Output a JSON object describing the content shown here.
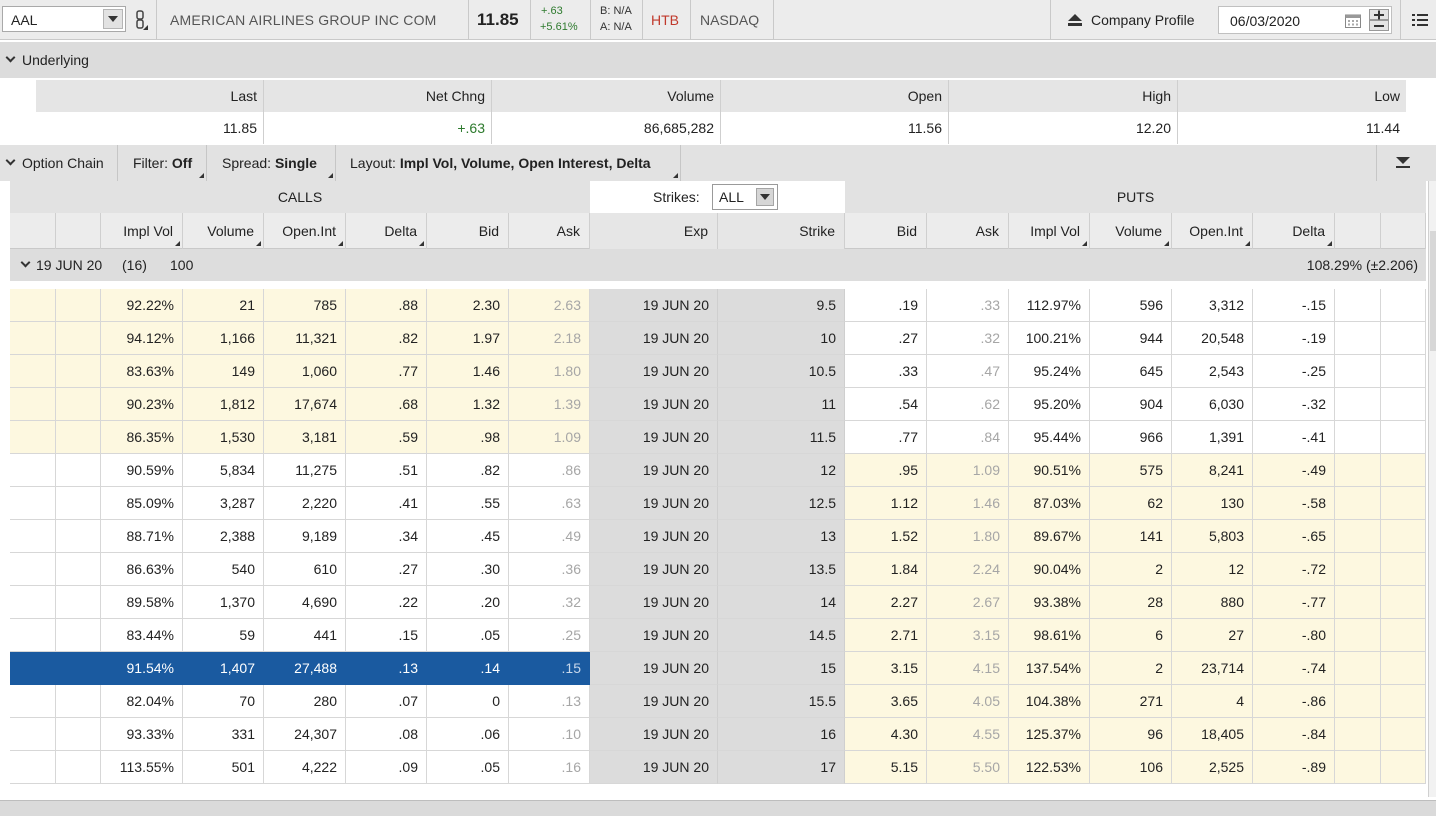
{
  "topbar": {
    "symbol": "AAL",
    "company_name": "AMERICAN AIRLINES GROUP INC COM",
    "last_price": "11.85",
    "change_abs": "+.63",
    "change_pct": "+5.61%",
    "bid": "B: N/A",
    "ask": "A: N/A",
    "htb": "HTB",
    "exchange": "NASDAQ",
    "company_profile": "Company Profile",
    "date": "06/03/2020"
  },
  "underlying": {
    "title": "Underlying",
    "columns": [
      "Last",
      "Net Chng",
      "Volume",
      "Open",
      "High",
      "Low"
    ],
    "values": [
      "11.85",
      "+.63",
      "86,685,282",
      "11.56",
      "12.20",
      "11.44"
    ]
  },
  "option_chain": {
    "title": "Option Chain",
    "filter_label": "Filter:",
    "filter_value": "Off",
    "spread_label": "Spread:",
    "spread_value": "Single",
    "layout_label": "Layout:",
    "layout_value": "Impl Vol, Volume, Open Interest, Delta",
    "calls_label": "CALLS",
    "puts_label": "PUTS",
    "strikes_label": "Strikes:",
    "strikes_value": "ALL",
    "call_columns": [
      "Impl Vol",
      "Volume",
      "Open.Int",
      "Delta",
      "Bid",
      "Ask"
    ],
    "mid_columns": [
      "Exp",
      "Strike"
    ],
    "put_columns": [
      "Bid",
      "Ask",
      "Impl Vol",
      "Volume",
      "Open.Int",
      "Delta"
    ],
    "expiry": {
      "label": "19 JUN 20",
      "count": "(16)",
      "multiplier": "100",
      "iv_summary": "108.29% (±2.206)"
    },
    "rows": [
      {
        "c_iv": "92.22%",
        "c_vol": "21",
        "c_oi": "785",
        "c_delta": ".88",
        "c_bid": "2.30",
        "c_ask": "2.63",
        "exp": "19 JUN 20",
        "strike": "9.5",
        "p_bid": ".19",
        "p_ask": ".33",
        "p_iv": "112.97%",
        "p_vol": "596",
        "p_oi": "3,312",
        "p_delta": "-.15"
      },
      {
        "c_iv": "94.12%",
        "c_vol": "1,166",
        "c_oi": "11,321",
        "c_delta": ".82",
        "c_bid": "1.97",
        "c_ask": "2.18",
        "exp": "19 JUN 20",
        "strike": "10",
        "p_bid": ".27",
        "p_ask": ".32",
        "p_iv": "100.21%",
        "p_vol": "944",
        "p_oi": "20,548",
        "p_delta": "-.19"
      },
      {
        "c_iv": "83.63%",
        "c_vol": "149",
        "c_oi": "1,060",
        "c_delta": ".77",
        "c_bid": "1.46",
        "c_ask": "1.80",
        "exp": "19 JUN 20",
        "strike": "10.5",
        "p_bid": ".33",
        "p_ask": ".47",
        "p_iv": "95.24%",
        "p_vol": "645",
        "p_oi": "2,543",
        "p_delta": "-.25"
      },
      {
        "c_iv": "90.23%",
        "c_vol": "1,812",
        "c_oi": "17,674",
        "c_delta": ".68",
        "c_bid": "1.32",
        "c_ask": "1.39",
        "exp": "19 JUN 20",
        "strike": "11",
        "p_bid": ".54",
        "p_ask": ".62",
        "p_iv": "95.20%",
        "p_vol": "904",
        "p_oi": "6,030",
        "p_delta": "-.32"
      },
      {
        "c_iv": "86.35%",
        "c_vol": "1,530",
        "c_oi": "3,181",
        "c_delta": ".59",
        "c_bid": ".98",
        "c_ask": "1.09",
        "exp": "19 JUN 20",
        "strike": "11.5",
        "p_bid": ".77",
        "p_ask": ".84",
        "p_iv": "95.44%",
        "p_vol": "966",
        "p_oi": "1,391",
        "p_delta": "-.41"
      },
      {
        "c_iv": "90.59%",
        "c_vol": "5,834",
        "c_oi": "11,275",
        "c_delta": ".51",
        "c_bid": ".82",
        "c_ask": ".86",
        "exp": "19 JUN 20",
        "strike": "12",
        "p_bid": ".95",
        "p_ask": "1.09",
        "p_iv": "90.51%",
        "p_vol": "575",
        "p_oi": "8,241",
        "p_delta": "-.49"
      },
      {
        "c_iv": "85.09%",
        "c_vol": "3,287",
        "c_oi": "2,220",
        "c_delta": ".41",
        "c_bid": ".55",
        "c_ask": ".63",
        "exp": "19 JUN 20",
        "strike": "12.5",
        "p_bid": "1.12",
        "p_ask": "1.46",
        "p_iv": "87.03%",
        "p_vol": "62",
        "p_oi": "130",
        "p_delta": "-.58"
      },
      {
        "c_iv": "88.71%",
        "c_vol": "2,388",
        "c_oi": "9,189",
        "c_delta": ".34",
        "c_bid": ".45",
        "c_ask": ".49",
        "exp": "19 JUN 20",
        "strike": "13",
        "p_bid": "1.52",
        "p_ask": "1.80",
        "p_iv": "89.67%",
        "p_vol": "141",
        "p_oi": "5,803",
        "p_delta": "-.65"
      },
      {
        "c_iv": "86.63%",
        "c_vol": "540",
        "c_oi": "610",
        "c_delta": ".27",
        "c_bid": ".30",
        "c_ask": ".36",
        "exp": "19 JUN 20",
        "strike": "13.5",
        "p_bid": "1.84",
        "p_ask": "2.24",
        "p_iv": "90.04%",
        "p_vol": "2",
        "p_oi": "12",
        "p_delta": "-.72"
      },
      {
        "c_iv": "89.58%",
        "c_vol": "1,370",
        "c_oi": "4,690",
        "c_delta": ".22",
        "c_bid": ".20",
        "c_ask": ".32",
        "exp": "19 JUN 20",
        "strike": "14",
        "p_bid": "2.27",
        "p_ask": "2.67",
        "p_iv": "93.38%",
        "p_vol": "28",
        "p_oi": "880",
        "p_delta": "-.77"
      },
      {
        "c_iv": "83.44%",
        "c_vol": "59",
        "c_oi": "441",
        "c_delta": ".15",
        "c_bid": ".05",
        "c_ask": ".25",
        "exp": "19 JUN 20",
        "strike": "14.5",
        "p_bid": "2.71",
        "p_ask": "3.15",
        "p_iv": "98.61%",
        "p_vol": "6",
        "p_oi": "27",
        "p_delta": "-.80"
      },
      {
        "c_iv": "91.54%",
        "c_vol": "1,407",
        "c_oi": "27,488",
        "c_delta": ".13",
        "c_bid": ".14",
        "c_ask": ".15",
        "exp": "19 JUN 20",
        "strike": "15",
        "p_bid": "3.15",
        "p_ask": "4.15",
        "p_iv": "137.54%",
        "p_vol": "2",
        "p_oi": "23,714",
        "p_delta": "-.74",
        "selected": true
      },
      {
        "c_iv": "82.04%",
        "c_vol": "70",
        "c_oi": "280",
        "c_delta": ".07",
        "c_bid": "0",
        "c_ask": ".13",
        "exp": "19 JUN 20",
        "strike": "15.5",
        "p_bid": "3.65",
        "p_ask": "4.05",
        "p_iv": "104.38%",
        "p_vol": "271",
        "p_oi": "4",
        "p_delta": "-.86"
      },
      {
        "c_iv": "93.33%",
        "c_vol": "331",
        "c_oi": "24,307",
        "c_delta": ".08",
        "c_bid": ".06",
        "c_ask": ".10",
        "exp": "19 JUN 20",
        "strike": "16",
        "p_bid": "4.30",
        "p_ask": "4.55",
        "p_iv": "125.37%",
        "p_vol": "96",
        "p_oi": "18,405",
        "p_delta": "-.84"
      },
      {
        "c_iv": "113.55%",
        "c_vol": "501",
        "c_oi": "4,222",
        "c_delta": ".09",
        "c_bid": ".05",
        "c_ask": ".16",
        "exp": "19 JUN 20",
        "strike": "17",
        "p_bid": "5.15",
        "p_ask": "5.50",
        "p_iv": "122.53%",
        "p_vol": "106",
        "p_oi": "2,525",
        "p_delta": "-.89"
      }
    ]
  },
  "colors": {
    "itm_bg": "#fdf8e0",
    "selected_bg": "#1a5aa0",
    "positive": "#2d7a2d",
    "htb": "#c0392b"
  }
}
